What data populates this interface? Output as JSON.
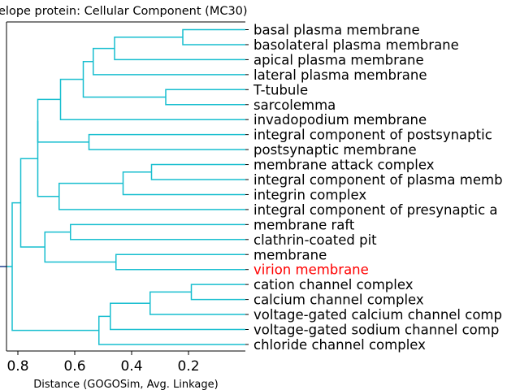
{
  "chart_data": {
    "type": "dendrogram",
    "title": "elope protein: Cellular Component (MC30)",
    "xlabel": "Distance (GOGOSim, Avg. Linkage)",
    "xlim": [
      0.84,
      0.0
    ],
    "x_ticks": [
      {
        "value": 0.8,
        "label": "0.8"
      },
      {
        "value": 0.6,
        "label": "0.6"
      },
      {
        "value": 0.4,
        "label": "0.4"
      },
      {
        "value": 0.2,
        "label": "0.2"
      }
    ],
    "link_color": "#17becf",
    "highlight_color": "#ff0000",
    "leaves": [
      {
        "label": "basal plasma membrane",
        "color": "#000000"
      },
      {
        "label": "basolateral plasma membrane",
        "color": "#000000"
      },
      {
        "label": "apical plasma membrane",
        "color": "#000000"
      },
      {
        "label": "lateral plasma membrane",
        "color": "#000000"
      },
      {
        "label": "T-tubule",
        "color": "#000000"
      },
      {
        "label": "sarcolemma",
        "color": "#000000"
      },
      {
        "label": "invadopodium membrane",
        "color": "#000000"
      },
      {
        "label": "integral component of postsynaptic",
        "color": "#000000"
      },
      {
        "label": "postsynaptic membrane",
        "color": "#000000"
      },
      {
        "label": "membrane attack complex",
        "color": "#000000"
      },
      {
        "label": "integral component of plasma memb",
        "color": "#000000"
      },
      {
        "label": "integrin complex",
        "color": "#000000"
      },
      {
        "label": "integral component of presynaptic a",
        "color": "#000000"
      },
      {
        "label": "membrane raft",
        "color": "#000000"
      },
      {
        "label": "clathrin-coated pit",
        "color": "#000000"
      },
      {
        "label": "membrane",
        "color": "#000000"
      },
      {
        "label": "virion membrane",
        "color": "#ff0000"
      },
      {
        "label": "cation channel complex",
        "color": "#000000"
      },
      {
        "label": "calcium channel complex",
        "color": "#000000"
      },
      {
        "label": "voltage-gated calcium channel comp",
        "color": "#000000"
      },
      {
        "label": "voltage-gated sodium channel comp",
        "color": "#000000"
      },
      {
        "label": "chloride channel complex",
        "color": "#000000"
      }
    ],
    "merges": [
      {
        "id": "c1",
        "left": 0,
        "right": 1,
        "distance": 0.22
      },
      {
        "id": "c2",
        "left": "c1",
        "right": 2,
        "distance": 0.46
      },
      {
        "id": "c3",
        "left": "c2",
        "right": 3,
        "distance": 0.535
      },
      {
        "id": "c4",
        "left": 4,
        "right": 5,
        "distance": 0.28
      },
      {
        "id": "c5",
        "left": "c3",
        "right": "c4",
        "distance": 0.57
      },
      {
        "id": "c6",
        "left": "c5",
        "right": 6,
        "distance": 0.65
      },
      {
        "id": "c7",
        "left": 7,
        "right": 8,
        "distance": 0.55
      },
      {
        "id": "c8",
        "left": "c6",
        "right": "c7",
        "distance": 0.73
      },
      {
        "id": "c9",
        "left": 9,
        "right": 10,
        "distance": 0.33
      },
      {
        "id": "c10",
        "left": "c9",
        "right": 11,
        "distance": 0.43
      },
      {
        "id": "c11",
        "left": "c10",
        "right": 12,
        "distance": 0.655
      },
      {
        "id": "c12",
        "left": "c8",
        "right": "c11",
        "distance": 0.73
      },
      {
        "id": "c13",
        "left": 13,
        "right": 14,
        "distance": 0.615
      },
      {
        "id": "c14",
        "left": 15,
        "right": 16,
        "distance": 0.455
      },
      {
        "id": "c15",
        "left": "c13",
        "right": "c14",
        "distance": 0.705
      },
      {
        "id": "c16",
        "left": "c12",
        "right": "c15",
        "distance": 0.79
      },
      {
        "id": "c17",
        "left": 17,
        "right": 18,
        "distance": 0.19
      },
      {
        "id": "c18",
        "left": "c17",
        "right": 19,
        "distance": 0.335
      },
      {
        "id": "c19",
        "left": "c18",
        "right": 20,
        "distance": 0.475
      },
      {
        "id": "c20",
        "left": "c19",
        "right": 21,
        "distance": 0.515
      },
      {
        "id": "c21",
        "left": "c16",
        "right": "c20",
        "distance": 0.82
      }
    ]
  }
}
